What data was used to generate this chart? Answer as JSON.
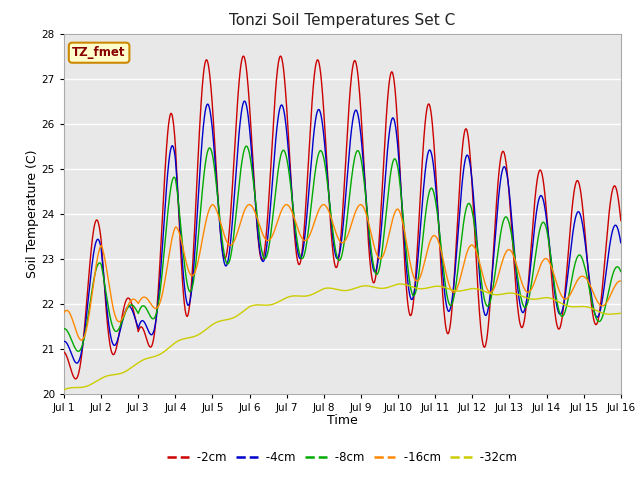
{
  "title": "Tonzi Soil Temperatures Set C",
  "xlabel": "Time",
  "ylabel": "Soil Temperature (C)",
  "ylim": [
    20.0,
    28.0
  ],
  "yticks": [
    20.0,
    21.0,
    22.0,
    23.0,
    24.0,
    25.0,
    26.0,
    27.0,
    28.0
  ],
  "xtick_labels": [
    "Jul 1",
    "Jul 2",
    "Jul 3",
    "Jul 4",
    "Jul 5",
    "Jul 6",
    "Jul 7",
    "Jul 8",
    "Jul 9",
    "Jul 10",
    "Jul 11",
    "Jul 12",
    "Jul 13",
    "Jul 14",
    "Jul 15",
    "Jul 16"
  ],
  "series": {
    "-2cm": {
      "color": "#cc0000",
      "linewidth": 1.0
    },
    "-4cm": {
      "color": "#0000cc",
      "linewidth": 1.0
    },
    "-8cm": {
      "color": "#00aa00",
      "linewidth": 1.0
    },
    "-16cm": {
      "color": "#ff8800",
      "linewidth": 1.0
    },
    "-32cm": {
      "color": "#cccc00",
      "linewidth": 1.0
    }
  },
  "legend_label": "TZ_fmet",
  "legend_box_color": "#ffffcc",
  "legend_box_edge": "#cc8800",
  "legend_text_color": "#880000",
  "fig_bg_color": "#ffffff",
  "plot_bg_color": "#e8e8e8",
  "grid_color": "#ffffff",
  "n_points": 1440,
  "days": 15,
  "peaks_2": [
    21.2,
    24.3,
    21.5,
    27.0,
    27.5,
    27.5,
    27.5,
    27.4,
    27.4,
    27.1,
    26.3,
    25.8,
    25.3,
    24.9,
    24.7,
    24.6
  ],
  "troughs_2": [
    20.1,
    20.8,
    21.0,
    21.1,
    23.0,
    23.0,
    22.9,
    22.8,
    22.8,
    21.8,
    21.6,
    20.8,
    21.5,
    21.4,
    21.5,
    21.6
  ],
  "peaks_4": [
    21.3,
    23.7,
    21.5,
    26.0,
    26.5,
    26.5,
    26.4,
    26.3,
    26.3,
    26.1,
    25.3,
    25.3,
    25.0,
    24.3,
    24.0,
    23.7
  ],
  "troughs_4": [
    20.5,
    21.0,
    21.2,
    21.5,
    22.8,
    22.9,
    23.0,
    23.0,
    23.0,
    22.2,
    21.9,
    21.7,
    21.8,
    21.8,
    21.7,
    21.7
  ],
  "peaks_8": [
    21.5,
    23.0,
    21.8,
    25.0,
    25.5,
    25.5,
    25.4,
    25.4,
    25.4,
    25.2,
    24.5,
    24.2,
    23.9,
    23.8,
    23.0,
    22.8
  ],
  "troughs_8": [
    20.7,
    21.3,
    21.5,
    21.9,
    22.8,
    23.0,
    23.0,
    23.0,
    22.9,
    22.3,
    22.0,
    21.9,
    22.0,
    21.8,
    21.6,
    21.6
  ],
  "peaks_16": [
    21.8,
    23.3,
    22.0,
    23.7,
    24.2,
    24.2,
    24.2,
    24.2,
    24.2,
    24.1,
    23.5,
    23.3,
    23.2,
    23.0,
    22.6,
    22.5
  ],
  "troughs_16": [
    20.9,
    21.5,
    21.7,
    22.1,
    23.2,
    23.4,
    23.4,
    23.4,
    23.3,
    22.7,
    22.3,
    22.2,
    22.3,
    22.2,
    22.0,
    21.9
  ],
  "trend_32": [
    20.05,
    20.3,
    20.65,
    21.1,
    21.5,
    21.9,
    22.1,
    22.3,
    22.35,
    22.4,
    22.35,
    22.3,
    22.2,
    22.1,
    21.9,
    21.75
  ]
}
